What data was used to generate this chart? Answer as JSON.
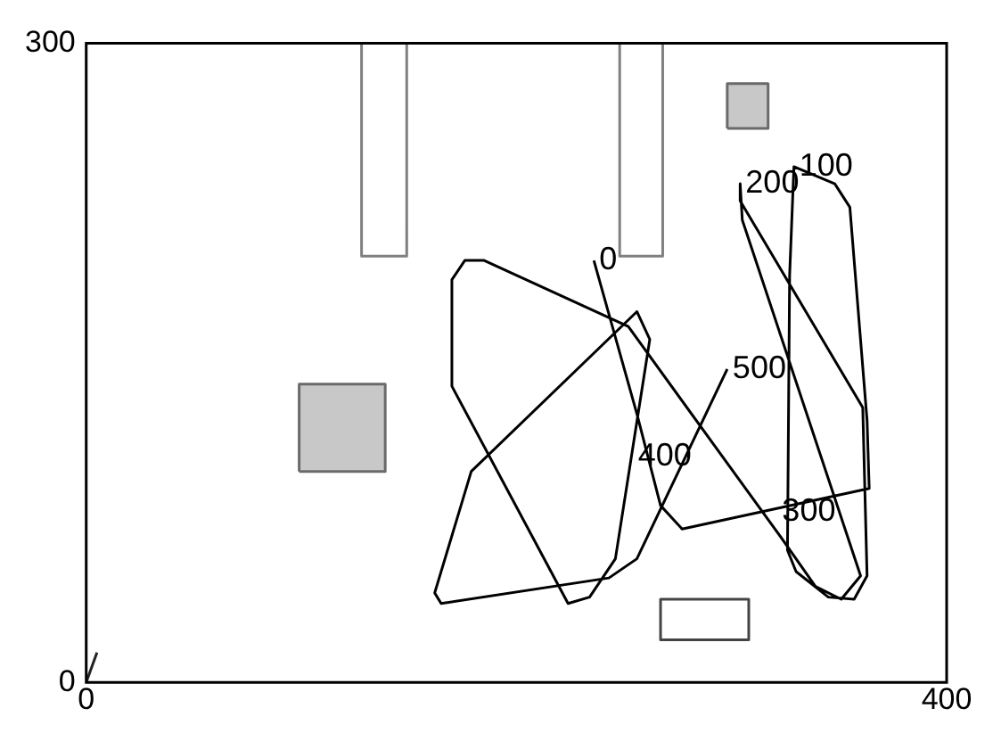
{
  "chart_data": {
    "type": "line",
    "xlim": [
      0,
      400
    ],
    "ylim": [
      0,
      300
    ],
    "xticks": [
      0,
      400
    ],
    "yticks": [
      0,
      300
    ],
    "legend": false,
    "series": [
      {
        "color": "#000000",
        "x": [
          236,
          256,
          267,
          277,
          364,
          363,
          355,
          348,
          329,
          327,
          326,
          330,
          345,
          357,
          363,
          361,
          304,
          304,
          305,
          360,
          351,
          339,
          323,
          252,
          185,
          176,
          170,
          170,
          224,
          234,
          246,
          262,
          256,
          179,
          162,
          165,
          243,
          256,
          298
        ],
        "values": [
          198,
          126,
          83,
          72,
          91,
          123,
          223,
          234,
          242,
          191,
          62,
          52,
          40,
          39,
          50,
          129,
          226,
          234,
          217,
          50,
          39,
          45,
          68,
          167,
          198,
          198,
          189,
          139,
          37,
          40,
          58,
          161,
          174,
          99,
          42,
          37,
          49,
          58,
          147
        ]
      },
      {
        "type": "line",
        "color": "#808080",
        "x": [
          128,
          128,
          149,
          149
        ],
        "values": [
          300,
          200,
          200,
          300
        ]
      },
      {
        "type": "line",
        "color": "#808080",
        "x": [
          248,
          248,
          268,
          268
        ],
        "values": [
          300,
          200,
          200,
          300
        ]
      },
      {
        "type": "area",
        "color": "#c8c8c8",
        "x": [
          298,
          298,
          317,
          317,
          298
        ],
        "values": [
          260,
          281,
          281,
          260,
          260
        ]
      },
      {
        "type": "area",
        "color": "#c8c8c8",
        "x": [
          99,
          99,
          139,
          139,
          99
        ],
        "values": [
          99,
          140,
          140,
          99,
          99
        ]
      },
      {
        "type": "line",
        "color": "#444444",
        "x": [
          288,
          267,
          267,
          308,
          308,
          287
        ],
        "values": [
          20,
          20,
          39,
          39,
          20,
          20
        ]
      },
      {
        "type": "line",
        "color": "#222222",
        "x": [
          0,
          5
        ],
        "values": [
          0,
          14
        ]
      }
    ],
    "annotations": [
      {
        "text": "0",
        "x": 236,
        "y": 198
      },
      {
        "text": "100",
        "x": 329,
        "y": 242
      },
      {
        "text": "200",
        "x": 304,
        "y": 234
      },
      {
        "text": "300",
        "x": 321,
        "y": 80
      },
      {
        "text": "400",
        "x": 254,
        "y": 106
      },
      {
        "text": "500",
        "x": 298,
        "y": 147
      }
    ]
  }
}
